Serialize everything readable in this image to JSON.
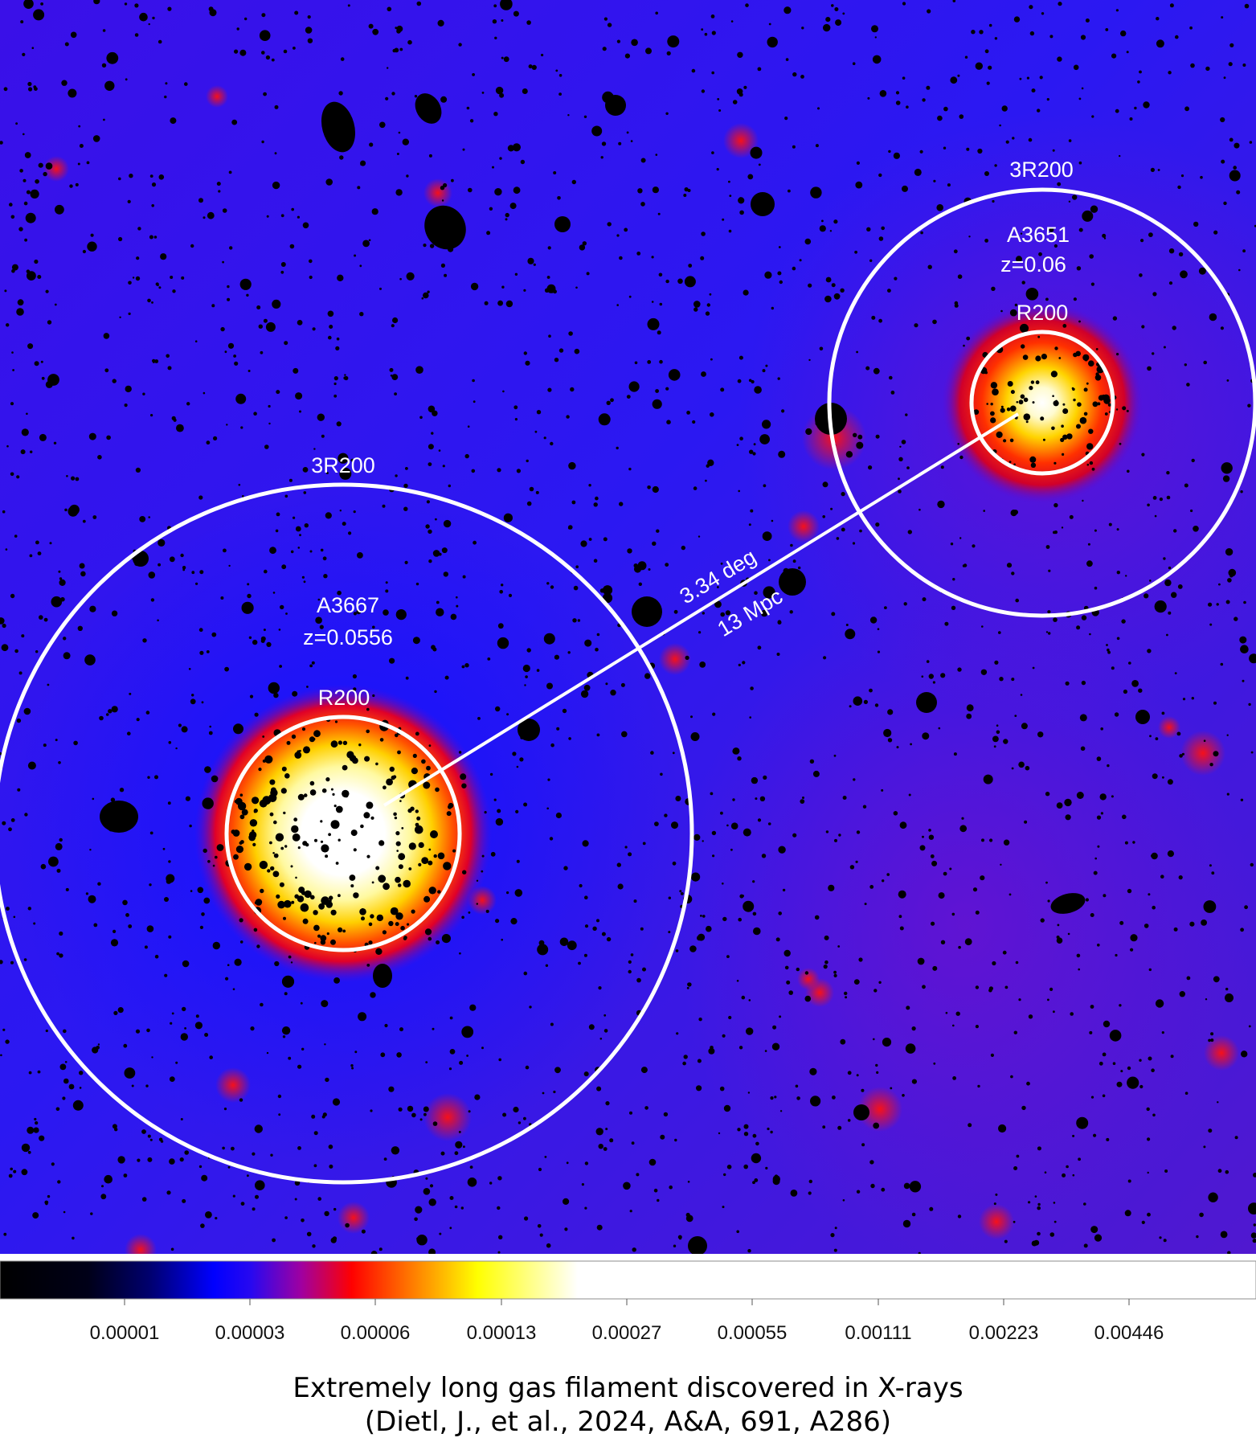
{
  "clusters": [
    {
      "name": "A3667",
      "redshift": "z=0.0556",
      "inner_label": "R200",
      "outer_label": "3R200"
    },
    {
      "name": "A3651",
      "redshift": "z=0.06",
      "inner_label": "R200",
      "outer_label": "3R200"
    }
  ],
  "connector": {
    "angle_label": "3.34 deg",
    "distance_label": "13 Mpc"
  },
  "colorbar": {
    "ticks": [
      "0.00001",
      "0.00003",
      "0.00006",
      "0.00013",
      "0.00027",
      "0.00055",
      "0.00111",
      "0.00223",
      "0.00446"
    ],
    "colormap": [
      "#000000",
      "#0000ff",
      "#ff0000",
      "#ffff00",
      "#ffffff"
    ]
  },
  "caption": {
    "line1": "Extremely long gas filament discovered in X-rays",
    "line2": "(Dietl, J., et al., 2024, A&A, 691, A286)"
  }
}
